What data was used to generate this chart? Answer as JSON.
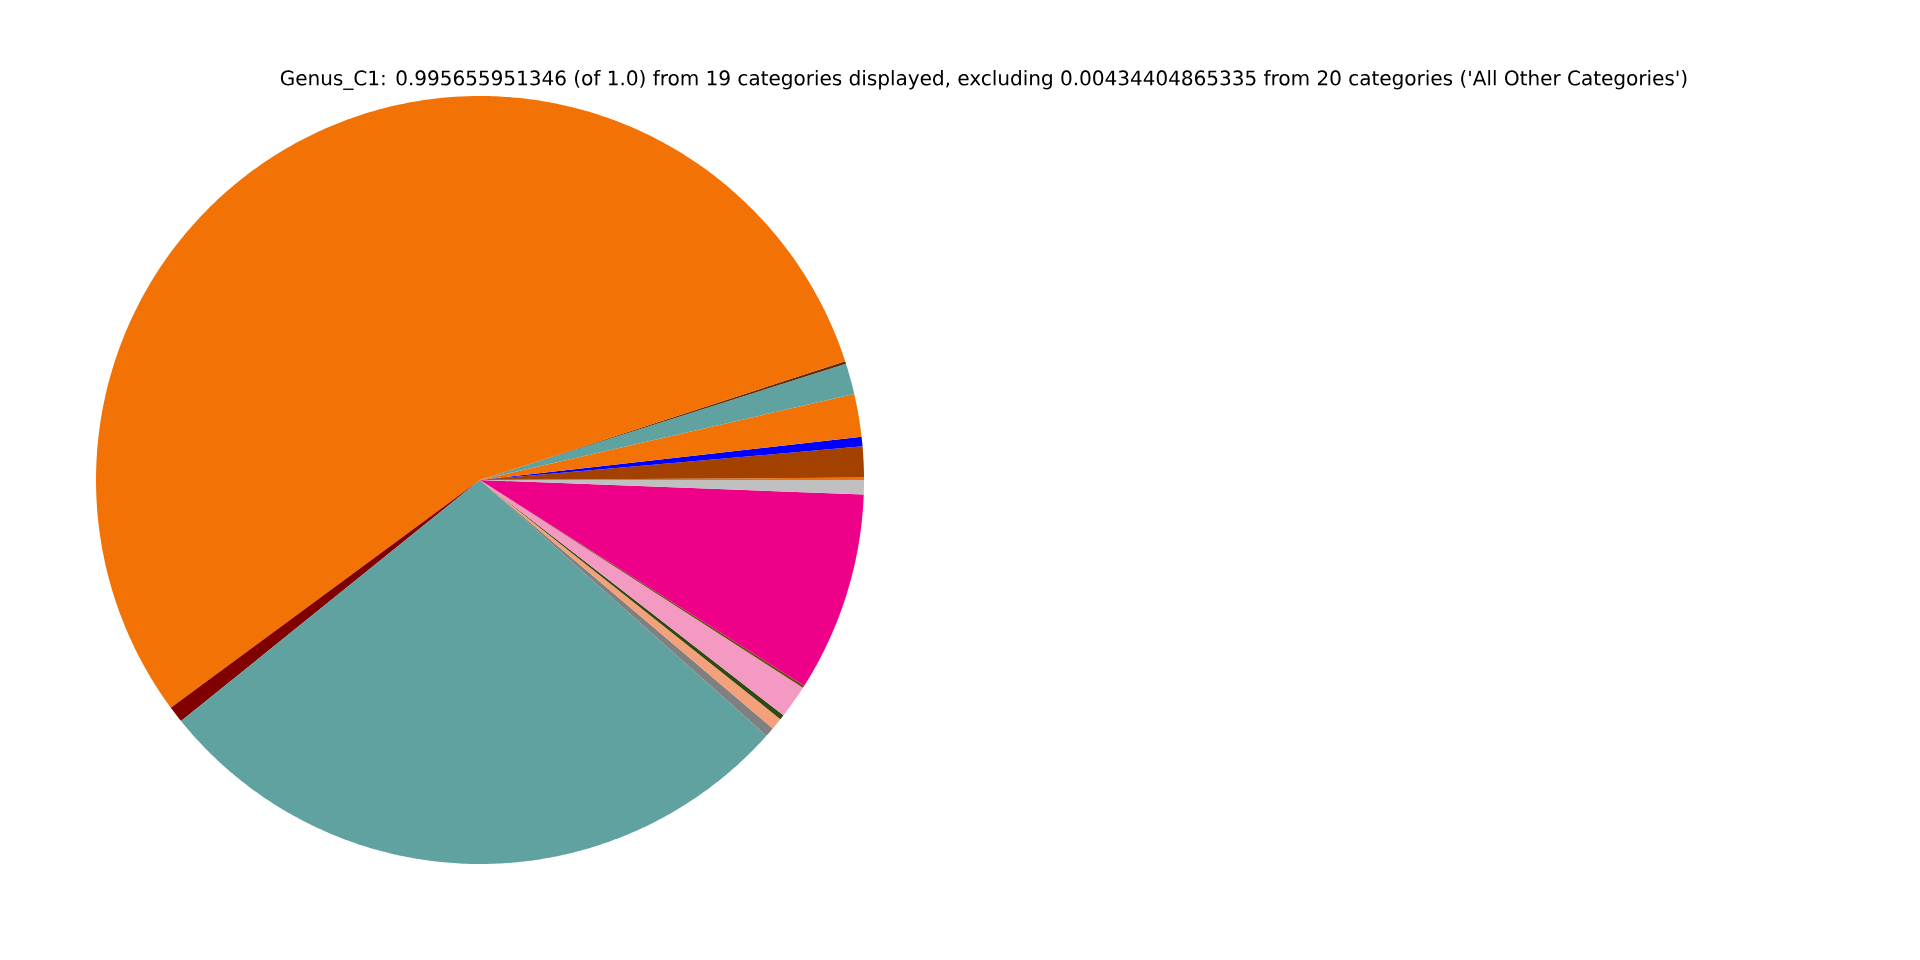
{
  "chart_data": {
    "type": "pie",
    "title": "Genus_C1: 0.995655951346 (of 1.0) from 19 categories displayed, excluding 0.00434404865335 from 20 categories ('All Other Categories')",
    "categories": [
      null,
      null,
      null,
      null,
      null,
      null,
      null,
      null,
      null,
      null,
      null,
      null,
      null,
      null,
      null,
      null
    ],
    "values": [
      0.1,
      1.3,
      0.4,
      1.8,
      1.3,
      0.1,
      55.1,
      0.7,
      27.6,
      0.4,
      0.5,
      0.2,
      1.4,
      0.1,
      8.4,
      0.6
    ],
    "colors": [
      "#f37205",
      "#a34100",
      "#0000ff",
      "#f37205",
      "#5fa29f",
      "#5a2a00",
      "#f37205",
      "#800000",
      "#5fa29f",
      "#808080",
      "#f4a07a",
      "#2e4a12",
      "#f49ac2",
      "#6b4a14",
      "#ee0088",
      "#c0c0c0"
    ]
  }
}
